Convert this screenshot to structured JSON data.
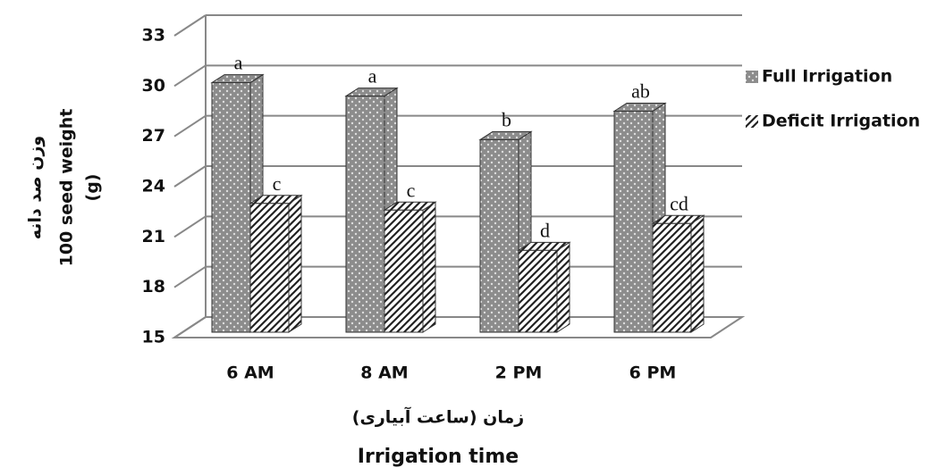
{
  "chart_data": {
    "type": "bar3d",
    "y_label": [
      "وزن صد دانه",
      "100 seed weight",
      "(g)"
    ],
    "x_label": [
      "زمان (ساعت آبیاری)",
      "Irrigation time"
    ],
    "categories": [
      "6 AM",
      "8 AM",
      "2 PM",
      "6 PM"
    ],
    "series": [
      {
        "name": "Full Irrigation",
        "color": "#8c8c8c",
        "values": [
          30.2,
          29.4,
          26.8,
          28.5
        ],
        "letters": [
          "a",
          "a",
          "b",
          "ab"
        ]
      },
      {
        "name": "Deficit Irrigation",
        "color": "#222222",
        "values": [
          23.0,
          22.6,
          20.2,
          21.8
        ],
        "letters": [
          "c",
          "c",
          "d",
          "cd"
        ]
      }
    ],
    "ylim": [
      15,
      33
    ],
    "yticks": [
      15,
      18,
      21,
      24,
      27,
      30,
      33
    ],
    "grid": true,
    "legend": "right"
  }
}
